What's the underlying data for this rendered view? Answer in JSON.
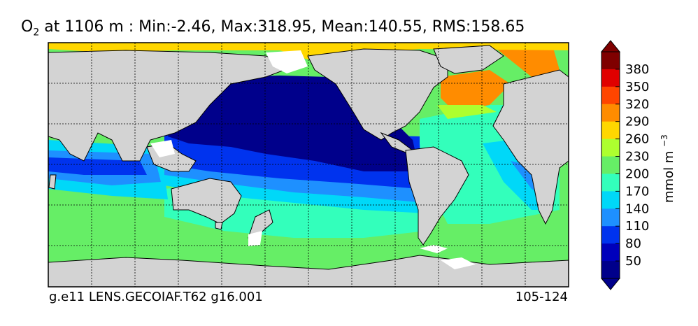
{
  "title": {
    "species": "O",
    "species_sub": "2",
    "rest": " at 1106 m : Min:-2.46, Max:318.95, Mean:140.55, RMS:158.65"
  },
  "footer": {
    "case": "g.e11 LENS.GECOIAF.T62 g16.001",
    "years": "105-124"
  },
  "colorbar": {
    "unit": "mmol m",
    "unit_exp": "−3",
    "ticks": [
      "380",
      "350",
      "320",
      "290",
      "260",
      "230",
      "200",
      "170",
      "140",
      "110",
      "80",
      "50"
    ],
    "colors": [
      "#7f0000",
      "#e00000",
      "#ff4500",
      "#ff8c00",
      "#ffd700",
      "#adff2f",
      "#66ee66",
      "#33ffbb",
      "#00d8f8",
      "#1e90ff",
      "#0033ee",
      "#0000bb",
      "#00008b"
    ]
  },
  "map": {
    "land_color": "#d3d3d3",
    "missing_color": "#ffffff"
  }
}
